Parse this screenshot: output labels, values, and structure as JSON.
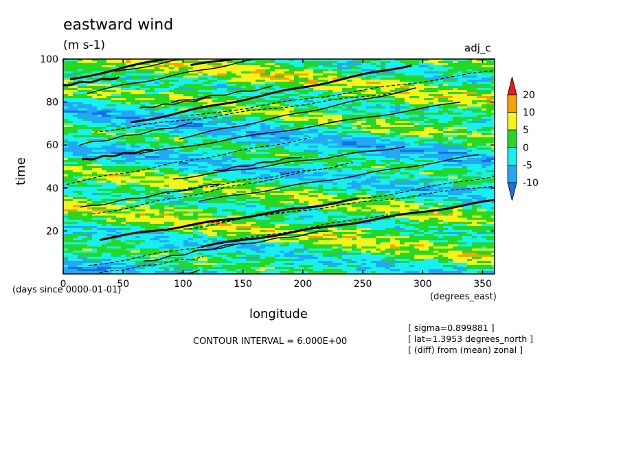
{
  "chart_data": {
    "type": "heatmap",
    "title": "eastward wind",
    "units": "(m s-1)",
    "tag": "adj_c",
    "xlabel": "longitude",
    "x_unit_label": "(degrees_east)",
    "ylabel": "time",
    "y_unit_label": "(days since 0000-01-01)",
    "xlim": [
      0,
      360
    ],
    "ylim": [
      0,
      100
    ],
    "x_ticks": [
      0,
      50,
      100,
      150,
      200,
      250,
      300,
      350
    ],
    "y_ticks": [
      20,
      40,
      60,
      80,
      100
    ],
    "colorbar": {
      "levels": [
        -10,
        -5,
        0,
        5,
        10,
        20
      ],
      "labels": [
        "20",
        "10",
        "5",
        "0",
        "-5",
        "-10"
      ],
      "colors": [
        "#1a6ee8",
        "#22a8f5",
        "#16f0f0",
        "#26d826",
        "#f5f51a",
        "#f5a100",
        "#e81a1a"
      ]
    },
    "contour_interval_text": "CONTOUR INTERVAL = 6.000E+00",
    "notes": [
      "[ sigma=0.899881 ]",
      "[ lat=1.3953 degrees_north ]",
      "[ (diff) from (mean) zonal ]"
    ],
    "field_colors": {
      "lt_-5": "#22a8f5",
      "lt_0": "#16f0f0",
      "lt_5": "#26d826",
      "lt_10": "#f5f51a",
      "lt_20": "#f5a100",
      "lt_-10": "#1a6ee8"
    }
  }
}
